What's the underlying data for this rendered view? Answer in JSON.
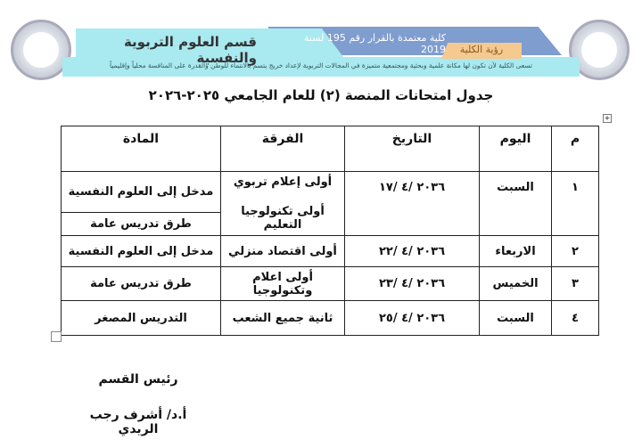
{
  "header": {
    "department": "قسم العلوم التربوية والنفسية",
    "accreditation": "كلية معتمدة بالقرار رقم 195 لسنة 2019",
    "vision_label": "رؤية الكلية",
    "vision_text": "تسعى الكلية لأن تكون لها مكانة علمية وبحثية ومجتمعية متميزة في المجالات التربوية لإعداد خريج يتسم بالانتماء للوطن والقدرة على المنافسة محلياً وإقليمياً"
  },
  "title": "جدول امتحانات المنصة (٢) للعام الجامعي ٢٠٢٥-٢٠٢٦",
  "table": {
    "headers": [
      "م",
      "اليوم",
      "التاريخ",
      "الفرقة",
      "المادة"
    ],
    "rows": [
      {
        "num": "١",
        "day": "السبت",
        "date": "٢٠٣٦ /٤ /١٧",
        "groups": [
          "أولى إعلام تربوي",
          "أولى تكنولوجيا التعليم"
        ],
        "subjects": [
          "مدخل إلى العلوم النفسية",
          "طرق تدريس عامة"
        ]
      },
      {
        "num": "٢",
        "day": "الاربعاء",
        "date": "٢٠٣٦ /٤ /٢٢",
        "group": "أولى اقتصاد منزلي",
        "subject": "مدخل إلى العلوم النفسية"
      },
      {
        "num": "٣",
        "day": "الخميس",
        "date": "٢٠٣٦ /٤ /٢٣",
        "group": "أولى اعلام وتكنولوجيا",
        "subject": "طرق تدريس عامة"
      },
      {
        "num": "٤",
        "day": "السبت",
        "date": "٢٠٣٦ /٤ /٢٥",
        "group": "ثانية جميع الشعب",
        "subject": "التدريس المصغر"
      }
    ]
  },
  "signature": {
    "role": "رئيس القسم",
    "name": "أ.د/ أشرف رجب الريدي"
  }
}
